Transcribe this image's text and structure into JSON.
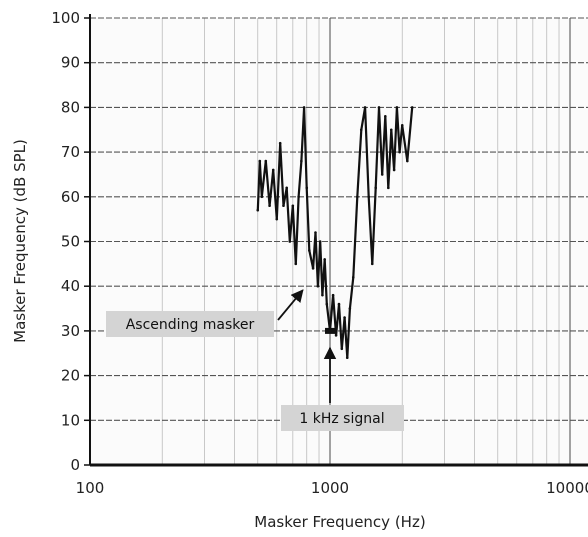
{
  "chart_data": {
    "type": "line",
    "xlabel": "Masker Frequency (Hz)",
    "ylabel": "Masker Frequency (dB SPL)",
    "x_scale": "log",
    "xlim": [
      100,
      30000
    ],
    "ylim": [
      0,
      100
    ],
    "x_ticks": [
      {
        "value": 100,
        "label": "100"
      },
      {
        "value": 1000,
        "label": "1000"
      },
      {
        "value": 10000,
        "label": "10000"
      }
    ],
    "y_ticks": [
      {
        "value": 0,
        "label": "0"
      },
      {
        "value": 10,
        "label": "10"
      },
      {
        "value": 20,
        "label": "20"
      },
      {
        "value": 30,
        "label": "30"
      },
      {
        "value": 40,
        "label": "40"
      },
      {
        "value": 50,
        "label": "50"
      },
      {
        "value": 60,
        "label": "60"
      },
      {
        "value": 70,
        "label": "70"
      },
      {
        "value": 80,
        "label": "80"
      },
      {
        "value": 90,
        "label": "90"
      },
      {
        "value": 100,
        "label": "100"
      }
    ],
    "grid": true,
    "series": [
      {
        "color": "#111111",
        "points": [
          [
            500,
            57
          ],
          [
            510,
            68
          ],
          [
            520,
            60
          ],
          [
            540,
            68
          ],
          [
            560,
            58
          ],
          [
            580,
            66
          ],
          [
            600,
            55
          ],
          [
            620,
            72
          ],
          [
            640,
            58
          ],
          [
            660,
            62
          ],
          [
            680,
            50
          ],
          [
            700,
            58
          ],
          [
            720,
            45
          ],
          [
            740,
            60
          ],
          [
            760,
            68
          ],
          [
            780,
            80
          ],
          [
            800,
            62
          ],
          [
            820,
            48
          ],
          [
            850,
            44
          ],
          [
            870,
            52
          ],
          [
            890,
            40
          ],
          [
            910,
            50
          ],
          [
            930,
            38
          ],
          [
            950,
            46
          ],
          [
            970,
            36
          ],
          [
            1000,
            30
          ],
          [
            1030,
            38
          ],
          [
            1060,
            29
          ],
          [
            1090,
            36
          ],
          [
            1120,
            26
          ],
          [
            1150,
            33
          ],
          [
            1180,
            24
          ],
          [
            1210,
            35
          ],
          [
            1250,
            42
          ],
          [
            1300,
            60
          ],
          [
            1350,
            75
          ],
          [
            1400,
            80
          ],
          [
            1450,
            60
          ],
          [
            1500,
            45
          ],
          [
            1550,
            62
          ],
          [
            1600,
            80
          ],
          [
            1650,
            65
          ],
          [
            1700,
            78
          ],
          [
            1750,
            62
          ],
          [
            1800,
            75
          ],
          [
            1850,
            66
          ],
          [
            1900,
            80
          ],
          [
            1950,
            70
          ],
          [
            2000,
            76
          ],
          [
            2100,
            68
          ],
          [
            2200,
            80
          ]
        ]
      }
    ],
    "annotations": [
      {
        "text": "Ascending masker",
        "target": [
          800,
          40
        ]
      },
      {
        "text": "1 kHz signal",
        "target": [
          1000,
          28
        ]
      }
    ]
  }
}
